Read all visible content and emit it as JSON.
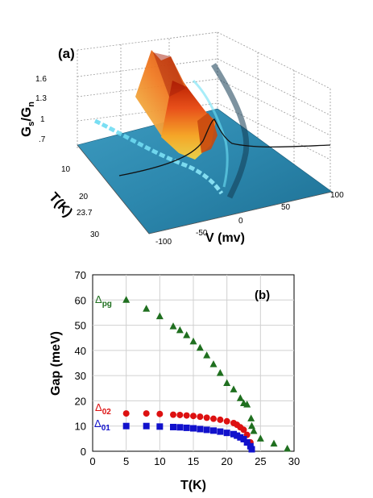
{
  "panel_a": {
    "label": "(a)",
    "zlabel_main": "G",
    "zlabel_sub_s": "s",
    "zlabel_slash": "/G",
    "zlabel_sub_n": "n",
    "z_ticks": [
      "1.6",
      "1.3",
      "1",
      ".7"
    ],
    "t_axis_label": "T(K)",
    "t_ticks": [
      "10",
      "20",
      "23.7",
      "30"
    ],
    "v_axis_label": "V (mv)",
    "v_ticks": [
      "-100",
      "-50",
      "0",
      "50",
      "100"
    ]
  },
  "chart_data": [
    {
      "type": "surface",
      "panel": "(a)",
      "zlabel": "Gs/Gn",
      "xlabel": "V (mv)",
      "ylabel": "T(K)",
      "xlim": [
        -100,
        100
      ],
      "ylim": [
        5,
        30
      ],
      "zticks": [
        0.7,
        1,
        1.3,
        1.6
      ],
      "xticks": [
        -100,
        -50,
        0,
        50,
        100
      ],
      "yticks": [
        10,
        20,
        23.7,
        30
      ]
    },
    {
      "type": "scatter",
      "panel": "(b)",
      "xlabel": "T(K)",
      "ylabel": "Gap (meV)",
      "xlim": [
        0,
        30
      ],
      "ylim": [
        0,
        70
      ],
      "xticks": [
        0,
        5,
        10,
        15,
        20,
        25,
        30
      ],
      "yticks": [
        0,
        10,
        20,
        30,
        40,
        50,
        60,
        70
      ],
      "grid": true,
      "series": [
        {
          "name_main": "Δ",
          "name_sub": "pg",
          "marker": "triangle",
          "color": "#1f6f1f",
          "points": [
            [
              5,
              60
            ],
            [
              8,
              56.5
            ],
            [
              10,
              53.5
            ],
            [
              12,
              49.5
            ],
            [
              13,
              48
            ],
            [
              14,
              46
            ],
            [
              15,
              43.5
            ],
            [
              16,
              41
            ],
            [
              17,
              38
            ],
            [
              18,
              34.5
            ],
            [
              19,
              31
            ],
            [
              20,
              27
            ],
            [
              21,
              24.5
            ],
            [
              22,
              21
            ],
            [
              22.5,
              19
            ],
            [
              23,
              18.5
            ],
            [
              23.6,
              13
            ],
            [
              23.7,
              10
            ],
            [
              24,
              8
            ],
            [
              25,
              5
            ],
            [
              27,
              3
            ],
            [
              29,
              1
            ]
          ]
        },
        {
          "name_main": "Δ",
          "name_sub": "02",
          "marker": "circle",
          "color": "#dd1111",
          "points": [
            [
              5,
              15
            ],
            [
              8,
              15
            ],
            [
              10,
              14.8
            ],
            [
              12,
              14.5
            ],
            [
              13,
              14.4
            ],
            [
              14,
              14.2
            ],
            [
              15,
              14
            ],
            [
              16,
              13.7
            ],
            [
              17,
              13.3
            ],
            [
              18,
              12.9
            ],
            [
              19,
              12.5
            ],
            [
              20,
              11.9
            ],
            [
              21,
              11.2
            ],
            [
              21.5,
              10.5
            ],
            [
              22,
              9.5
            ],
            [
              22.5,
              8.5
            ],
            [
              23,
              6.5
            ],
            [
              23.5,
              3.5
            ],
            [
              23.7,
              1
            ]
          ]
        },
        {
          "name_main": "Δ",
          "name_sub": "01",
          "marker": "square",
          "color": "#1111cc",
          "points": [
            [
              5,
              10
            ],
            [
              8,
              10
            ],
            [
              10,
              9.8
            ],
            [
              12,
              9.6
            ],
            [
              13,
              9.5
            ],
            [
              14,
              9.3
            ],
            [
              15,
              9.1
            ],
            [
              16,
              8.8
            ],
            [
              17,
              8.5
            ],
            [
              18,
              8.2
            ],
            [
              19,
              7.8
            ],
            [
              20,
              7.3
            ],
            [
              21,
              6.8
            ],
            [
              21.5,
              6.2
            ],
            [
              22,
              5.5
            ],
            [
              22.5,
              4.8
            ],
            [
              23,
              3.5
            ],
            [
              23.5,
              2
            ],
            [
              23.7,
              0.8
            ]
          ]
        }
      ]
    }
  ],
  "panel_b": {
    "label": "(b)"
  }
}
